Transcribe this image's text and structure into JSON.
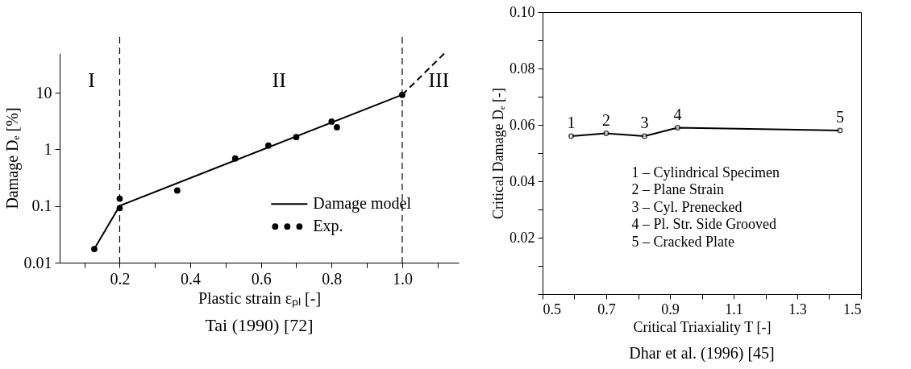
{
  "chart_data": [
    {
      "type": "line",
      "xlabel": "Plastic strain εₚₗ [-]",
      "ylabel": "Damage Dₑ [%]",
      "log": "y",
      "grid": false,
      "xlim": [
        0.03,
        1.16
      ],
      "ylim": [
        0.01,
        50
      ],
      "xticks": [
        {
          "value": 0.1,
          "label": null
        },
        0.2,
        {
          "value": 0.3,
          "label": null
        },
        0.4,
        {
          "value": 0.5,
          "label": null
        },
        0.6,
        {
          "value": 0.7,
          "label": null
        },
        0.8,
        {
          "value": 0.9,
          "label": null
        },
        {
          "value": 1.0,
          "label": "1.0"
        },
        {
          "value": 1.1,
          "label": null
        }
      ],
      "yticks": [
        0.01,
        0.1,
        1,
        10
      ],
      "series": [
        {
          "name": "Damage model",
          "type": "line",
          "color": "#000000",
          "line_style": "solid",
          "marker": "none",
          "x": [
            0.128,
            0.2,
            1.0
          ],
          "values": [
            0.0174,
            0.101,
            9.2
          ]
        },
        {
          "type": "line",
          "color": "#000000",
          "line_style": "dashed",
          "marker": "none",
          "x": [
            1.0,
            1.12
          ],
          "values": [
            9.2,
            50
          ]
        },
        {
          "name": "Exp.",
          "type": "scatter",
          "color": "#000000",
          "marker": "circle",
          "x": [
            0.128,
            0.2,
            0.2,
            0.363,
            0.527,
            0.621,
            0.7,
            0.8,
            0.815,
            1.0
          ],
          "values": [
            0.0174,
            0.135,
            0.092,
            0.188,
            0.69,
            1.17,
            1.65,
            3.1,
            2.46,
            9.2
          ]
        }
      ],
      "ref_lines": [
        {
          "axis": "x",
          "value": 0.2,
          "line_style": "dashed",
          "color": "#000000"
        },
        {
          "axis": "x",
          "value": 1.0,
          "line_style": "dashed",
          "color": "#000000"
        }
      ],
      "legend": "bottom right",
      "annotations": [
        "I",
        "II",
        "III",
        "Tai (1990) [72]"
      ]
    },
    {
      "type": "line",
      "xlabel": "Critical Triaxiality T [-]",
      "ylabel": "Critical Damage Dₑ [-]",
      "grid": false,
      "marker": "circle",
      "line_style": "solid",
      "xlim": [
        0.5,
        1.5
      ],
      "ylim": [
        0,
        0.1
      ],
      "xticks": [
        0.5,
        {
          "value": 0.6,
          "label": null
        },
        0.7,
        {
          "value": 0.8,
          "label": null
        },
        0.9,
        {
          "value": 1.0,
          "label": null
        },
        1.1,
        {
          "value": 1.2,
          "label": null
        },
        1.3,
        {
          "value": 1.4,
          "label": null
        },
        1.5
      ],
      "yticks": [
        {
          "value": 0,
          "label": null
        },
        {
          "value": 0.01,
          "label": null
        },
        0.02,
        {
          "value": 0.03,
          "label": null
        },
        0.04,
        {
          "value": 0.05,
          "label": null
        },
        0.06,
        {
          "value": 0.07,
          "label": null
        },
        0.08,
        {
          "value": 0.09,
          "label": null
        },
        {
          "value": 0.1,
          "label": "0.10"
        }
      ],
      "x": [
        0.59,
        0.7,
        0.82,
        0.924,
        1.434
      ],
      "series": [
        {
          "color": "#000000",
          "values": [
            0.056,
            0.057,
            0.056,
            0.059,
            0.058
          ]
        }
      ],
      "annotations": [
        {
          "text": "1",
          "x": 0.59,
          "y": 0.056
        },
        {
          "text": "2",
          "x": 0.7,
          "y": 0.057
        },
        {
          "text": "3",
          "x": 0.82,
          "y": 0.056
        },
        {
          "text": "4",
          "x": 0.924,
          "y": 0.059
        },
        {
          "text": "5",
          "x": 1.434,
          "y": 0.058
        },
        "1 – Cylindrical Specimen",
        "2 – Plane Strain",
        "3 – Cyl. Prenecked",
        "4 – Pl. Str. Side Grooved",
        "5 – Cracked Plate",
        "Dhar et al. (1996) [45]"
      ]
    }
  ]
}
